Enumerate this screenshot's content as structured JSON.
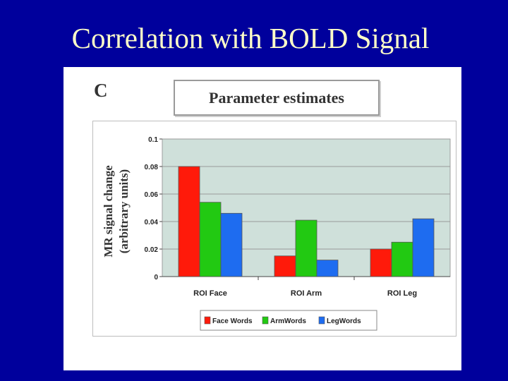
{
  "slide": {
    "title": "Correlation with BOLD Signal"
  },
  "figure": {
    "panel_letter": "C"
  },
  "chart_data": {
    "type": "bar",
    "title": "Parameter estimates",
    "xlabel": "",
    "ylabel": "MR signal change (arbitrary units)",
    "ylabel_lines": [
      "MR signal change",
      "(arbitrary units)"
    ],
    "categories": [
      "ROI Face",
      "ROI Arm",
      "ROI Leg"
    ],
    "series": [
      {
        "name": "Face Words",
        "values": [
          0.08,
          0.015,
          0.02
        ],
        "color": "#ff1a0a"
      },
      {
        "name": "ArmWords",
        "values": [
          0.054,
          0.041,
          0.025
        ],
        "color": "#22c912"
      },
      {
        "name": "LegWords",
        "values": [
          0.046,
          0.012,
          0.042
        ],
        "color": "#1e6cf0"
      }
    ],
    "ylim": [
      0,
      0.1
    ],
    "yticks": [
      0,
      0.02,
      0.04,
      0.06,
      0.08,
      0.1
    ],
    "ytick_labels": [
      "0",
      "0.02",
      "0.04",
      "0.06",
      "0.08",
      "0.1"
    ],
    "grid": true,
    "plot_background": "#cfe0da",
    "legend_position": "bottom"
  }
}
